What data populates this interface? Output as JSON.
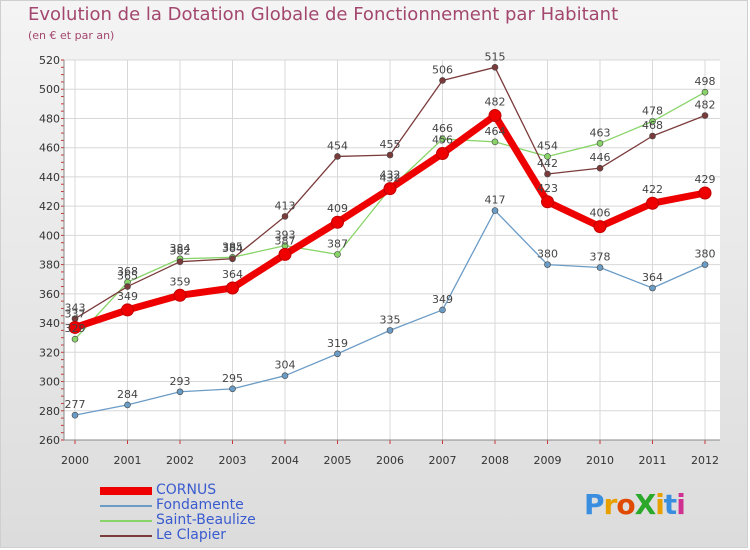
{
  "title": "Evolution de la Dotation Globale de Fonctionnement par Habitant",
  "subtitle": "(en € et par an)",
  "logo": "ProXiti",
  "chart_data": {
    "type": "line",
    "title": "Evolution de la Dotation Globale de Fonctionnement par Habitant",
    "subtitle": "(en € et par an)",
    "xlabel": "",
    "ylabel": "",
    "x": [
      "2000",
      "2001",
      "2002",
      "2003",
      "2004",
      "2005",
      "2006",
      "2007",
      "2008",
      "2009",
      "2010",
      "2011",
      "2012"
    ],
    "ylim": [
      260,
      520
    ],
    "yticks": [
      260,
      280,
      300,
      320,
      340,
      360,
      380,
      400,
      420,
      440,
      460,
      480,
      500,
      520
    ],
    "grid": true,
    "legend": "bottom-left",
    "series": [
      {
        "name": "CORNUS",
        "color": "#ee0000",
        "width": 7,
        "marker": 6,
        "values": [
          337,
          349,
          359,
          364,
          387,
          409,
          432,
          456,
          482,
          423,
          406,
          422,
          429
        ],
        "labels": [
          "337",
          "349",
          "359",
          "364",
          "387",
          "409",
          "432",
          "456",
          "482",
          "423",
          "406",
          "422",
          "429"
        ]
      },
      {
        "name": "Fondamente",
        "color": "#6b9cc6",
        "width": 1.3,
        "marker": 3,
        "values": [
          277,
          284,
          293,
          295,
          304,
          319,
          335,
          349,
          417,
          380,
          378,
          364,
          380
        ],
        "labels": [
          "277",
          "284",
          "293",
          "295",
          "304",
          "319",
          "335",
          "349",
          "417",
          "380",
          "378",
          "364",
          "380"
        ]
      },
      {
        "name": "Saint-Beaulize",
        "color": "#88d468",
        "width": 1.3,
        "marker": 3,
        "values": [
          329,
          368,
          384,
          385,
          393,
          387,
          432,
          466,
          464,
          454,
          463,
          478,
          498
        ],
        "labels": [
          "329",
          "368",
          "384",
          "385",
          "393",
          "387",
          "432",
          "466",
          "464",
          "454",
          "463",
          "478",
          "498"
        ]
      },
      {
        "name": "Le Clapier",
        "color": "#7b3b3b",
        "width": 1.3,
        "marker": 3,
        "values": [
          343,
          365,
          382,
          384,
          413,
          454,
          455,
          506,
          515,
          442,
          446,
          468,
          482
        ],
        "labels": [
          "343",
          "365",
          "382",
          "384",
          "413",
          "454",
          "455",
          "506",
          "515",
          "442",
          "446",
          "468",
          "482"
        ]
      }
    ]
  }
}
